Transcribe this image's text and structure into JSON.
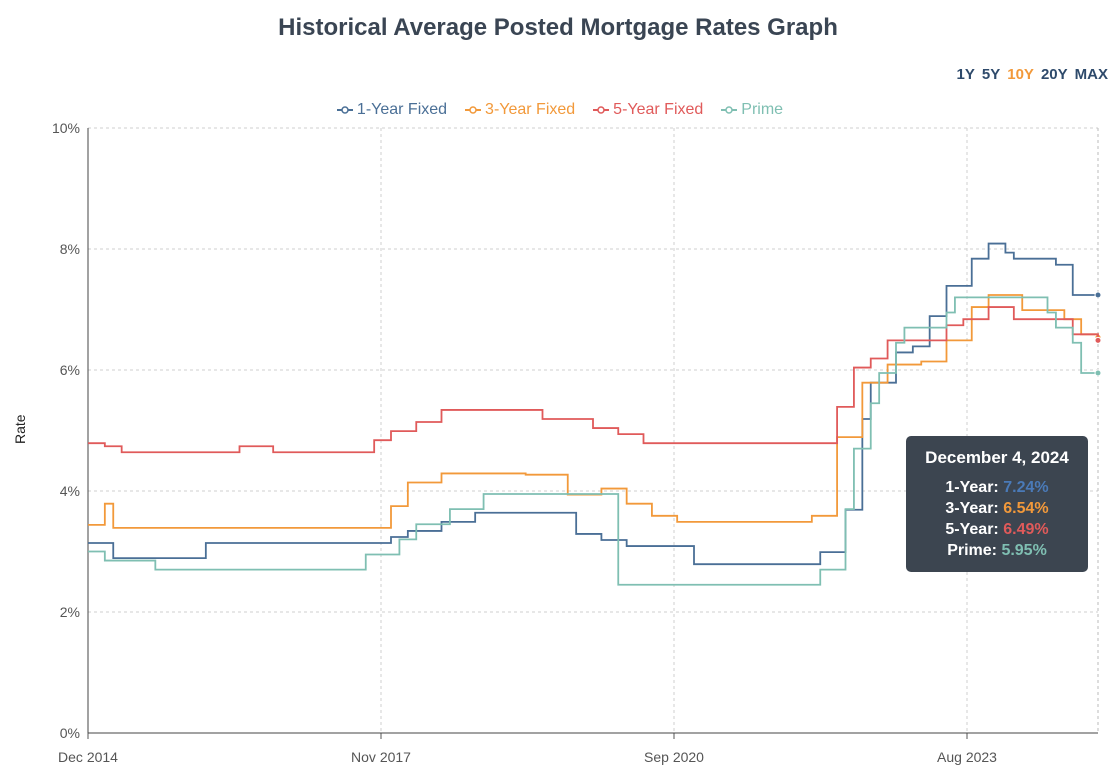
{
  "header": {
    "title": "Historical Average Posted Mortgage Rates Graph"
  },
  "range_buttons": [
    {
      "label": "1Y",
      "active": false
    },
    {
      "label": "5Y",
      "active": false
    },
    {
      "label": "10Y",
      "active": true
    },
    {
      "label": "20Y",
      "active": false
    },
    {
      "label": "MAX",
      "active": false
    }
  ],
  "colors": {
    "one_year": "#4a6f96",
    "three_year": "#f2993a",
    "five_year": "#e05a5a",
    "prime": "#7fbfb2",
    "range_active": "#f2993a",
    "range_inactive": "#2e4a6b"
  },
  "tooltip": {
    "date": "December 4, 2024",
    "rows": [
      {
        "label": "1-Year:",
        "value": "7.24%",
        "color": "#4a7ab8"
      },
      {
        "label": "3-Year:",
        "value": "6.54%",
        "color": "#f2993a"
      },
      {
        "label": "5-Year:",
        "value": "6.49%",
        "color": "#e05a5a"
      },
      {
        "label": "Prime:",
        "value": "5.95%",
        "color": "#7fbfb2"
      }
    ]
  },
  "chart_data": {
    "type": "line",
    "title": "Historical Average Posted Mortgage Rates Graph",
    "xlabel": "",
    "ylabel": "Rate",
    "x_ticks": [
      "Dec 2014",
      "Nov 2017",
      "Sep 2020",
      "Aug 2023"
    ],
    "y_ticks": [
      "0%",
      "2%",
      "4%",
      "6%",
      "8%",
      "10%"
    ],
    "xlim": [
      "2014-12",
      "2024-12"
    ],
    "ylim": [
      0,
      10
    ],
    "grid": true,
    "legend_position": "top-center",
    "series": [
      {
        "name": "1-Year Fixed",
        "color": "#4a6f96",
        "points": [
          [
            "2014-12",
            3.14
          ],
          [
            "2015-02",
            3.14
          ],
          [
            "2015-03",
            2.89
          ],
          [
            "2016-01",
            2.89
          ],
          [
            "2016-02",
            3.14
          ],
          [
            "2017-10",
            3.14
          ],
          [
            "2017-12",
            3.24
          ],
          [
            "2018-02",
            3.34
          ],
          [
            "2018-06",
            3.49
          ],
          [
            "2018-10",
            3.64
          ],
          [
            "2019-06",
            3.64
          ],
          [
            "2019-09",
            3.64
          ],
          [
            "2019-10",
            3.29
          ],
          [
            "2020-01",
            3.19
          ],
          [
            "2020-04",
            3.09
          ],
          [
            "2020-09",
            3.09
          ],
          [
            "2020-12",
            2.79
          ],
          [
            "2022-02",
            2.79
          ],
          [
            "2022-03",
            2.99
          ],
          [
            "2022-06",
            3.69
          ],
          [
            "2022-08",
            5.19
          ],
          [
            "2022-09",
            5.79
          ],
          [
            "2022-12",
            6.29
          ],
          [
            "2023-02",
            6.39
          ],
          [
            "2023-04",
            6.89
          ],
          [
            "2023-06",
            7.39
          ],
          [
            "2023-09",
            7.84
          ],
          [
            "2023-11",
            8.09
          ],
          [
            "2024-01",
            7.94
          ],
          [
            "2024-02",
            7.84
          ],
          [
            "2024-07",
            7.74
          ],
          [
            "2024-09",
            7.24
          ],
          [
            "2024-12",
            7.24
          ]
        ]
      },
      {
        "name": "3-Year Fixed",
        "color": "#f2993a",
        "points": [
          [
            "2014-12",
            3.44
          ],
          [
            "2015-01",
            3.44
          ],
          [
            "2015-02",
            3.79
          ],
          [
            "2015-03",
            3.39
          ],
          [
            "2016-06",
            3.39
          ],
          [
            "2017-09",
            3.39
          ],
          [
            "2017-12",
            3.75
          ],
          [
            "2018-02",
            4.14
          ],
          [
            "2018-06",
            4.29
          ],
          [
            "2019-04",
            4.27
          ],
          [
            "2019-06",
            4.27
          ],
          [
            "2019-09",
            3.94
          ],
          [
            "2019-12",
            3.94
          ],
          [
            "2020-01",
            4.04
          ],
          [
            "2020-04",
            3.79
          ],
          [
            "2020-07",
            3.59
          ],
          [
            "2020-10",
            3.49
          ],
          [
            "2021-03",
            3.49
          ],
          [
            "2021-12",
            3.49
          ],
          [
            "2022-02",
            3.59
          ],
          [
            "2022-05",
            4.89
          ],
          [
            "2022-08",
            5.79
          ],
          [
            "2022-11",
            6.09
          ],
          [
            "2023-03",
            6.14
          ],
          [
            "2023-06",
            6.49
          ],
          [
            "2023-09",
            7.04
          ],
          [
            "2023-11",
            7.24
          ],
          [
            "2024-03",
            6.99
          ],
          [
            "2024-08",
            6.84
          ],
          [
            "2024-10",
            6.59
          ],
          [
            "2024-12",
            6.54
          ]
        ]
      },
      {
        "name": "5-Year Fixed",
        "color": "#e05a5a",
        "points": [
          [
            "2014-12",
            4.79
          ],
          [
            "2015-02",
            4.74
          ],
          [
            "2015-04",
            4.64
          ],
          [
            "2016-03",
            4.64
          ],
          [
            "2016-06",
            4.74
          ],
          [
            "2016-10",
            4.64
          ],
          [
            "2017-08",
            4.64
          ],
          [
            "2017-10",
            4.84
          ],
          [
            "2017-12",
            4.99
          ],
          [
            "2018-03",
            5.14
          ],
          [
            "2018-06",
            5.34
          ],
          [
            "2019-04",
            5.34
          ],
          [
            "2019-06",
            5.19
          ],
          [
            "2019-12",
            5.04
          ],
          [
            "2020-03",
            4.94
          ],
          [
            "2020-06",
            4.79
          ],
          [
            "2022-02",
            4.79
          ],
          [
            "2022-05",
            5.39
          ],
          [
            "2022-07",
            6.04
          ],
          [
            "2022-09",
            6.19
          ],
          [
            "2022-11",
            6.49
          ],
          [
            "2023-06",
            6.74
          ],
          [
            "2023-08",
            6.84
          ],
          [
            "2023-11",
            7.04
          ],
          [
            "2024-02",
            6.84
          ],
          [
            "2024-09",
            6.59
          ],
          [
            "2024-12",
            6.49
          ]
        ]
      },
      {
        "name": "Prime",
        "color": "#7fbfb2",
        "points": [
          [
            "2014-12",
            3.0
          ],
          [
            "2015-02",
            2.85
          ],
          [
            "2015-08",
            2.7
          ],
          [
            "2017-07",
            2.7
          ],
          [
            "2017-09",
            2.95
          ],
          [
            "2018-01",
            3.2
          ],
          [
            "2018-03",
            3.45
          ],
          [
            "2018-07",
            3.7
          ],
          [
            "2018-11",
            3.95
          ],
          [
            "2019-10",
            3.95
          ],
          [
            "2020-03",
            2.45
          ],
          [
            "2022-02",
            2.45
          ],
          [
            "2022-03",
            2.7
          ],
          [
            "2022-06",
            3.7
          ],
          [
            "2022-07",
            4.7
          ],
          [
            "2022-09",
            5.45
          ],
          [
            "2022-10",
            5.95
          ],
          [
            "2022-12",
            6.45
          ],
          [
            "2023-01",
            6.7
          ],
          [
            "2023-06",
            6.95
          ],
          [
            "2023-07",
            7.2
          ],
          [
            "2024-06",
            6.95
          ],
          [
            "2024-07",
            6.7
          ],
          [
            "2024-09",
            6.45
          ],
          [
            "2024-10",
            5.95
          ],
          [
            "2024-12",
            5.95
          ]
        ]
      }
    ]
  }
}
